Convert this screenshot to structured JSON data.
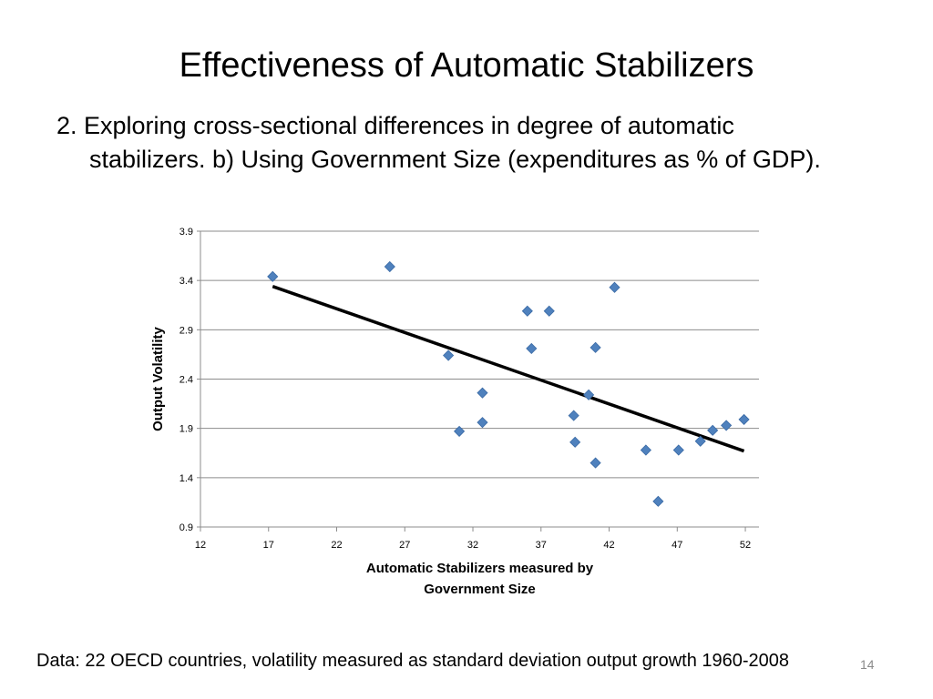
{
  "slide": {
    "title": "Effectiveness of Automatic Stabilizers",
    "bullet_line1": "2. Exploring cross-sectional differences in degree of automatic",
    "bullet_line2": "stabilizers. b) Using Government Size (expenditures as % of GDP).",
    "footnote": "Data: 22 OECD countries, volatility measured as standard deviation output growth 1960-2008",
    "page_number": "14"
  },
  "chart_data": {
    "type": "scatter",
    "xlabel_line1": "Automatic Stabilizers measured by",
    "xlabel_line2": "Government Size",
    "ylabel": "Output Volatility",
    "xlim": [
      12,
      53
    ],
    "ylim": [
      0.9,
      3.9
    ],
    "xticks": [
      "12",
      "17",
      "22",
      "27",
      "32",
      "37",
      "42",
      "47",
      "52"
    ],
    "yticks": [
      "0.9",
      "1.4",
      "1.9",
      "2.4",
      "2.9",
      "3.4",
      "3.9"
    ],
    "grid": "horizontal",
    "marker_color": "#4F81BD",
    "trendline_color": "#000000",
    "points": [
      {
        "x": 17.3,
        "y": 3.44
      },
      {
        "x": 25.9,
        "y": 3.54
      },
      {
        "x": 30.2,
        "y": 2.64
      },
      {
        "x": 31.0,
        "y": 1.87
      },
      {
        "x": 32.7,
        "y": 2.26
      },
      {
        "x": 32.7,
        "y": 1.96
      },
      {
        "x": 36.0,
        "y": 3.09
      },
      {
        "x": 36.3,
        "y": 2.71
      },
      {
        "x": 37.6,
        "y": 3.09
      },
      {
        "x": 39.4,
        "y": 2.03
      },
      {
        "x": 39.5,
        "y": 1.76
      },
      {
        "x": 40.5,
        "y": 2.24
      },
      {
        "x": 41.0,
        "y": 2.72
      },
      {
        "x": 41.0,
        "y": 1.55
      },
      {
        "x": 42.4,
        "y": 3.33
      },
      {
        "x": 44.7,
        "y": 1.68
      },
      {
        "x": 45.6,
        "y": 1.16
      },
      {
        "x": 47.1,
        "y": 1.68
      },
      {
        "x": 48.7,
        "y": 1.77
      },
      {
        "x": 49.6,
        "y": 1.88
      },
      {
        "x": 50.6,
        "y": 1.93
      },
      {
        "x": 51.9,
        "y": 1.99
      }
    ],
    "trendline": {
      "x1": 17.3,
      "y1": 3.34,
      "x2": 51.9,
      "y2": 1.67
    }
  }
}
